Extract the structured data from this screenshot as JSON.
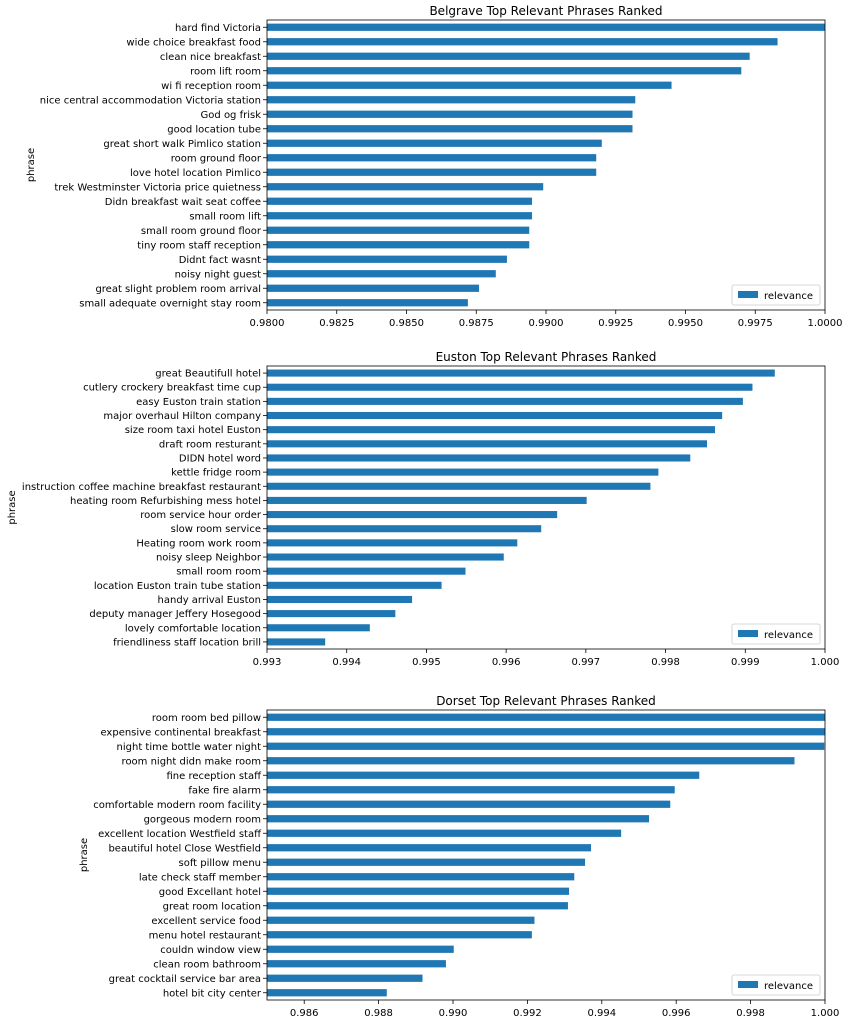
{
  "bar_color": "#1f77b4",
  "chart_data": [
    {
      "type": "bar",
      "orientation": "horizontal",
      "title": "Belgrave Top Relevant Phrases Ranked",
      "ylabel": "phrase",
      "xlabel": "",
      "xlim": [
        0.98,
        1.0
      ],
      "xticks": [
        "0.9800",
        "0.9825",
        "0.9850",
        "0.9875",
        "0.9900",
        "0.9925",
        "0.9950",
        "0.9975",
        "1.0000"
      ],
      "xtick_values": [
        0.98,
        0.9825,
        0.985,
        0.9875,
        0.99,
        0.9925,
        0.995,
        0.9975,
        1.0
      ],
      "legend": "relevance",
      "legend_position": "lower right",
      "categories": [
        "hard find Victoria",
        "wide choice breakfast food",
        "clean nice breakfast",
        "room lift room",
        "wi fi reception room",
        "nice central accommodation Victoria station",
        "God og frisk",
        "good location tube",
        "great short walk Pimlico station",
        "room ground floor",
        "love hotel location Pimlico",
        "trek Westminster Victoria price quietness",
        "Didn breakfast wait seat coffee",
        "small room lift",
        "small room ground floor",
        "tiny room staff reception",
        "Didnt fact wasnt",
        "noisy night guest",
        "great slight problem room arrival",
        "small adequate overnight stay room"
      ],
      "values": [
        1.0,
        0.9983,
        0.9973,
        0.997,
        0.9945,
        0.9932,
        0.9931,
        0.9931,
        0.992,
        0.9918,
        0.9918,
        0.9899,
        0.9895,
        0.9895,
        0.9894,
        0.9894,
        0.9886,
        0.9882,
        0.9876,
        0.9872
      ]
    },
    {
      "type": "bar",
      "orientation": "horizontal",
      "title": "Euston Top Relevant Phrases Ranked",
      "ylabel": "phrase",
      "xlabel": "",
      "xlim": [
        0.993,
        1.0
      ],
      "xticks": [
        "0.993",
        "0.994",
        "0.995",
        "0.996",
        "0.997",
        "0.998",
        "0.999",
        "1.000"
      ],
      "xtick_values": [
        0.993,
        0.994,
        0.995,
        0.996,
        0.997,
        0.998,
        0.999,
        1.0
      ],
      "legend": "relevance",
      "legend_position": "lower right",
      "categories": [
        "great Beautifull hotel",
        "cutlery crockery breakfast time cup",
        "easy Euston train station",
        "major overhaul Hilton company",
        "size room taxi hotel Euston",
        "draft room resturant",
        "DIDN hotel word",
        "kettle fridge room",
        "instruction coffee machine breakfast restaurant",
        "heating room Refurbishing mess hotel",
        "room service hour order",
        "slow room service",
        "Heating room work room",
        "noisy sleep Neighbor",
        "small room room",
        "location Euston train tube station",
        "handy arrival Euston",
        "deputy manager Jeffery Hosegood",
        "lovely comfortable location",
        "friendliness staff location brill"
      ],
      "values": [
        0.99937,
        0.99909,
        0.99897,
        0.99871,
        0.99862,
        0.99852,
        0.99831,
        0.99791,
        0.99781,
        0.99701,
        0.99664,
        0.99644,
        0.99614,
        0.99597,
        0.99549,
        0.99519,
        0.99482,
        0.99461,
        0.99429,
        0.99373
      ]
    },
    {
      "type": "bar",
      "orientation": "horizontal",
      "title": "Dorset Top Relevant Phrases Ranked",
      "ylabel": "phrase",
      "xlabel": "",
      "xlim": [
        0.985,
        1.0
      ],
      "xticks": [
        "0.986",
        "0.988",
        "0.990",
        "0.992",
        "0.994",
        "0.996",
        "0.998",
        "1.000"
      ],
      "xtick_values": [
        0.986,
        0.988,
        0.99,
        0.992,
        0.994,
        0.996,
        0.998,
        1.0
      ],
      "legend": "relevance",
      "legend_position": "lower right",
      "categories": [
        "room room bed pillow",
        "expensive continental breakfast",
        "night time bottle water night",
        "room night didn make room",
        "fine reception staff",
        "fake fire alarm",
        "comfortable modern room facility",
        "gorgeous modern room",
        "excellent location Westfield staff",
        "beautiful hotel Close Westfield",
        "soft pillow menu",
        "late check staff member",
        "good Excellant hotel",
        "great room location",
        "excellent service food",
        "menu hotel restaurant",
        "couldn window view",
        "clean room bathroom",
        "great cocktail service bar area",
        "hotel bit city center"
      ],
      "values": [
        1.0,
        1.0,
        0.99998,
        0.99918,
        0.99662,
        0.99596,
        0.99584,
        0.99527,
        0.99452,
        0.99371,
        0.99355,
        0.99326,
        0.99312,
        0.99309,
        0.99219,
        0.99212,
        0.99002,
        0.98981,
        0.98918,
        0.98822
      ]
    }
  ]
}
